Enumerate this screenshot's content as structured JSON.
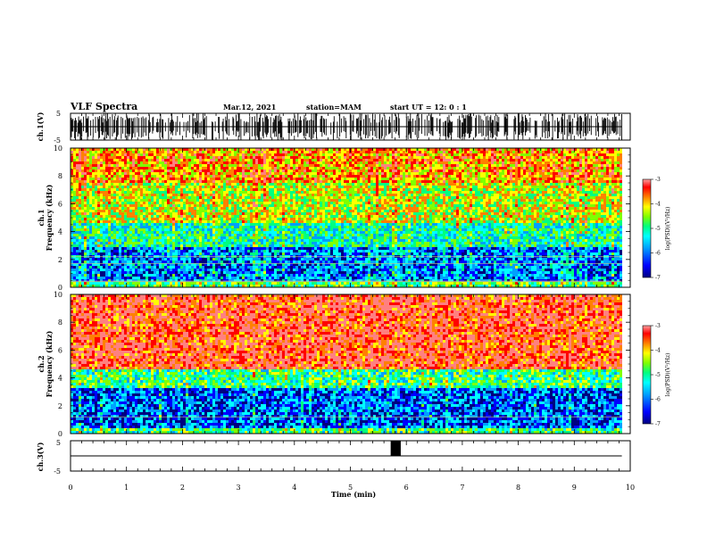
{
  "header": {
    "title": "VLF Spectra",
    "date": "Mar.12, 2021",
    "station": "station=MAM",
    "start": "start  UT =   12: 0  : 1"
  },
  "colors": {
    "background": "#ffffff",
    "spectrogram_scale": [
      "#000080",
      "#0000ff",
      "#00a0ff",
      "#00ffff",
      "#00ff80",
      "#80ff00",
      "#ffff00",
      "#ff8000",
      "#ff0000",
      "#ff8080"
    ]
  },
  "chart_data": [
    {
      "type": "line",
      "name": "ch1-waveform",
      "ylabel": "ch.1(V)",
      "ylim": [
        -5,
        5
      ],
      "yticks": [
        "5",
        "-5"
      ],
      "xlim": [
        0,
        10
      ],
      "description": "dense impulsive VLF waveform"
    },
    {
      "type": "heatmap",
      "name": "ch1-spectrogram",
      "ylabel_lines": [
        "ch.1",
        "Frequency  (kHz)"
      ],
      "ylim": [
        0,
        10
      ],
      "yticks": [
        "0",
        "2",
        "4",
        "6",
        "8",
        "10"
      ],
      "xlim": [
        0,
        9.85
      ],
      "colorbar": {
        "label": "log(PSD)(V²/Hz)",
        "ticks": [
          "-3",
          "-4",
          "-5",
          "-6",
          "-7"
        ],
        "range": [
          -7,
          -3
        ]
      },
      "bands": [
        {
          "fmin": 0,
          "fmax": 0.4,
          "level": -5.0
        },
        {
          "fmin": 0.4,
          "fmax": 2.8,
          "level": -6.1
        },
        {
          "fmin": 2.8,
          "fmax": 4.6,
          "level": -5.4
        },
        {
          "fmin": 4.6,
          "fmax": 7.5,
          "level": -4.6
        },
        {
          "fmin": 7.5,
          "fmax": 10,
          "level": -4.1
        }
      ],
      "lines_khz": [
        0.4,
        0.45,
        1.7,
        2.2
      ]
    },
    {
      "type": "heatmap",
      "name": "ch2-spectrogram",
      "ylabel_lines": [
        "ch.2",
        "Frequency  (kHz)"
      ],
      "ylim": [
        0,
        10
      ],
      "yticks": [
        "0",
        "2",
        "4",
        "6",
        "8",
        "10"
      ],
      "xlim": [
        0,
        9.85
      ],
      "colorbar": {
        "label": "log(PSD)(V²/Hz)",
        "ticks": [
          "-3",
          "-4",
          "-5",
          "-6",
          "-7"
        ],
        "range": [
          -7,
          -3
        ]
      },
      "bands": [
        {
          "fmin": 0,
          "fmax": 0.4,
          "level": -5.2
        },
        {
          "fmin": 0.4,
          "fmax": 3.3,
          "level": -6.2
        },
        {
          "fmin": 3.3,
          "fmax": 4.7,
          "level": -5.2
        },
        {
          "fmin": 4.7,
          "fmax": 10,
          "level": -3.6
        }
      ],
      "lines_khz": [
        1.2
      ]
    },
    {
      "type": "line",
      "name": "ch3-waveform",
      "ylabel": "ch.3(V)",
      "ylim": [
        -5,
        5
      ],
      "yticks": [
        "5",
        "-5"
      ],
      "xlim": [
        0,
        10
      ],
      "baseline": 0,
      "pulse": {
        "x_start": 5.72,
        "x_end": 5.9,
        "y_top": 5
      }
    }
  ],
  "xaxis": {
    "label": "Time  (min)",
    "ticks": [
      "0",
      "1",
      "2",
      "3",
      "4",
      "5",
      "6",
      "7",
      "8",
      "9",
      "10"
    ],
    "range": [
      0,
      10
    ]
  }
}
